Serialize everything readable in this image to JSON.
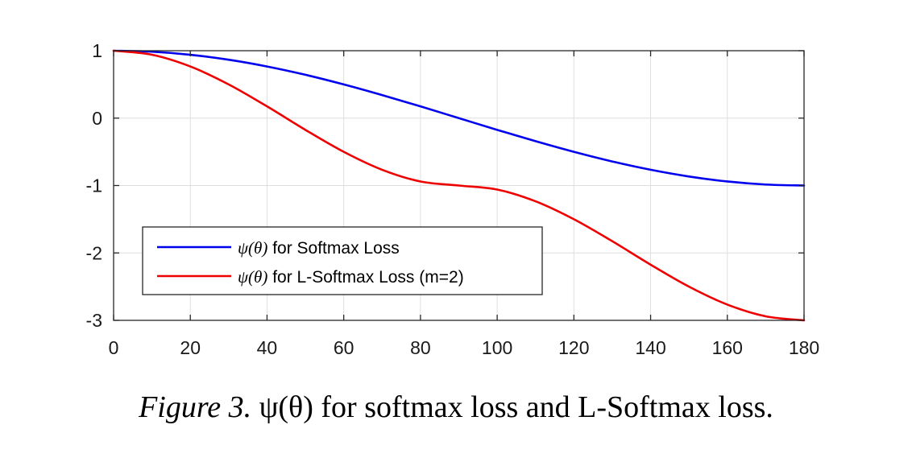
{
  "chart_data": {
    "type": "line",
    "title": "",
    "xlabel": "",
    "ylabel": "",
    "xlim": [
      0,
      180
    ],
    "ylim": [
      -3,
      1
    ],
    "x_ticks": [
      0,
      20,
      40,
      60,
      80,
      100,
      120,
      140,
      160,
      180
    ],
    "y_ticks": [
      1,
      0,
      -1,
      -2,
      -3
    ],
    "grid": true,
    "legend_position": "bottom-left",
    "series": [
      {
        "name": "ψ(θ) for Softmax Loss",
        "name_symbol": "ψ(θ)",
        "name_text": " for Softmax Loss",
        "color": "#0000ee",
        "x": [
          0,
          10,
          20,
          30,
          40,
          50,
          60,
          70,
          80,
          90,
          100,
          110,
          120,
          130,
          140,
          150,
          160,
          170,
          180
        ],
        "values": [
          1.0,
          0.985,
          0.94,
          0.866,
          0.766,
          0.643,
          0.5,
          0.342,
          0.174,
          0.0,
          -0.174,
          -0.342,
          -0.5,
          -0.643,
          -0.766,
          -0.866,
          -0.94,
          -0.985,
          -1.0
        ]
      },
      {
        "name": "ψ(θ) for L-Softmax Loss (m=2)",
        "name_symbol": "ψ(θ)",
        "name_text": " for L-Softmax Loss (m=2)",
        "color": "#ee0000",
        "x": [
          0,
          10,
          20,
          30,
          40,
          50,
          60,
          70,
          80,
          90,
          100,
          110,
          120,
          130,
          140,
          150,
          160,
          170,
          180
        ],
        "values": [
          1.0,
          0.94,
          0.766,
          0.5,
          0.174,
          -0.174,
          -0.5,
          -0.766,
          -0.94,
          -1.0,
          -1.06,
          -1.234,
          -1.5,
          -1.826,
          -2.174,
          -2.5,
          -2.766,
          -2.94,
          -3.0
        ]
      }
    ]
  },
  "caption": {
    "label": "Figure 3.",
    "symbol": "ψ(θ)",
    "text": " for softmax loss and L-Softmax loss."
  }
}
